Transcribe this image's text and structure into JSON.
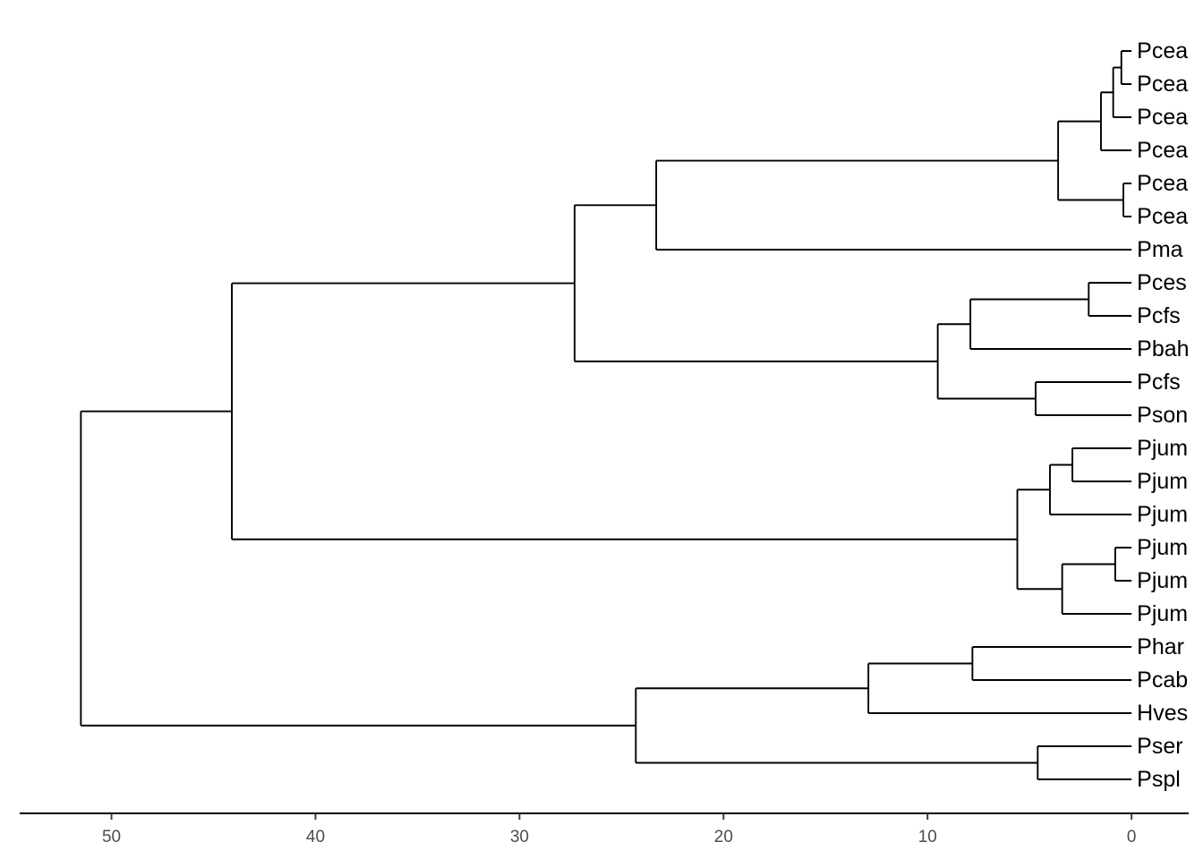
{
  "chart_data": {
    "type": "dendrogram",
    "orientation": "horizontal",
    "leaf_side": "right",
    "xlim": [
      54.5,
      -2.8
    ],
    "x_ticks": [
      50,
      40,
      30,
      20,
      10,
      0
    ],
    "tick_labels": [
      "50",
      "40",
      "30",
      "20",
      "10",
      "0"
    ],
    "title": "",
    "xlabel": "",
    "ylabel": "",
    "grid": false,
    "legend": "none",
    "leaves": [
      "Pcea",
      "Pcea",
      "Pcea",
      "Pcea",
      "Pcea",
      "Pcea",
      "Pma",
      "Pces",
      "Pcfs",
      "Pbah",
      "Pcfs",
      "Pson",
      "Pjum",
      "Pjum",
      "Pjum",
      "Pjum",
      "Pjum",
      "Pjum",
      "Phar",
      "Pcab",
      "Hves",
      "Pser",
      "Pspl"
    ],
    "merges": [
      {
        "left": "leaf:0",
        "right": "leaf:1",
        "height": 0.5
      },
      {
        "left": "merge:0",
        "right": "leaf:2",
        "height": 0.9
      },
      {
        "left": "merge:1",
        "right": "leaf:3",
        "height": 1.5
      },
      {
        "left": "leaf:4",
        "right": "leaf:5",
        "height": 0.4
      },
      {
        "left": "merge:2",
        "right": "merge:3",
        "height": 3.6
      },
      {
        "left": "merge:4",
        "right": "leaf:6",
        "height": 23.3
      },
      {
        "left": "leaf:7",
        "right": "leaf:8",
        "height": 2.1
      },
      {
        "left": "merge:6",
        "right": "leaf:9",
        "height": 7.9
      },
      {
        "left": "leaf:10",
        "right": "leaf:11",
        "height": 4.7
      },
      {
        "left": "merge:7",
        "right": "merge:8",
        "height": 9.5
      },
      {
        "left": "merge:5",
        "right": "merge:9",
        "height": 27.3
      },
      {
        "left": "leaf:12",
        "right": "leaf:13",
        "height": 2.9
      },
      {
        "left": "merge:11",
        "right": "leaf:14",
        "height": 4.0
      },
      {
        "left": "leaf:15",
        "right": "leaf:16",
        "height": 0.8
      },
      {
        "left": "merge:13",
        "right": "leaf:17",
        "height": 3.4
      },
      {
        "left": "merge:12",
        "right": "merge:14",
        "height": 5.6
      },
      {
        "left": "merge:10",
        "right": "merge:15",
        "height": 44.1
      },
      {
        "left": "leaf:18",
        "right": "leaf:19",
        "height": 7.8
      },
      {
        "left": "merge:17",
        "right": "leaf:20",
        "height": 12.9
      },
      {
        "left": "leaf:21",
        "right": "leaf:22",
        "height": 4.6
      },
      {
        "left": "merge:18",
        "right": "merge:19",
        "height": 24.3
      },
      {
        "left": "merge:16",
        "right": "merge:20",
        "height": 51.5
      }
    ]
  }
}
